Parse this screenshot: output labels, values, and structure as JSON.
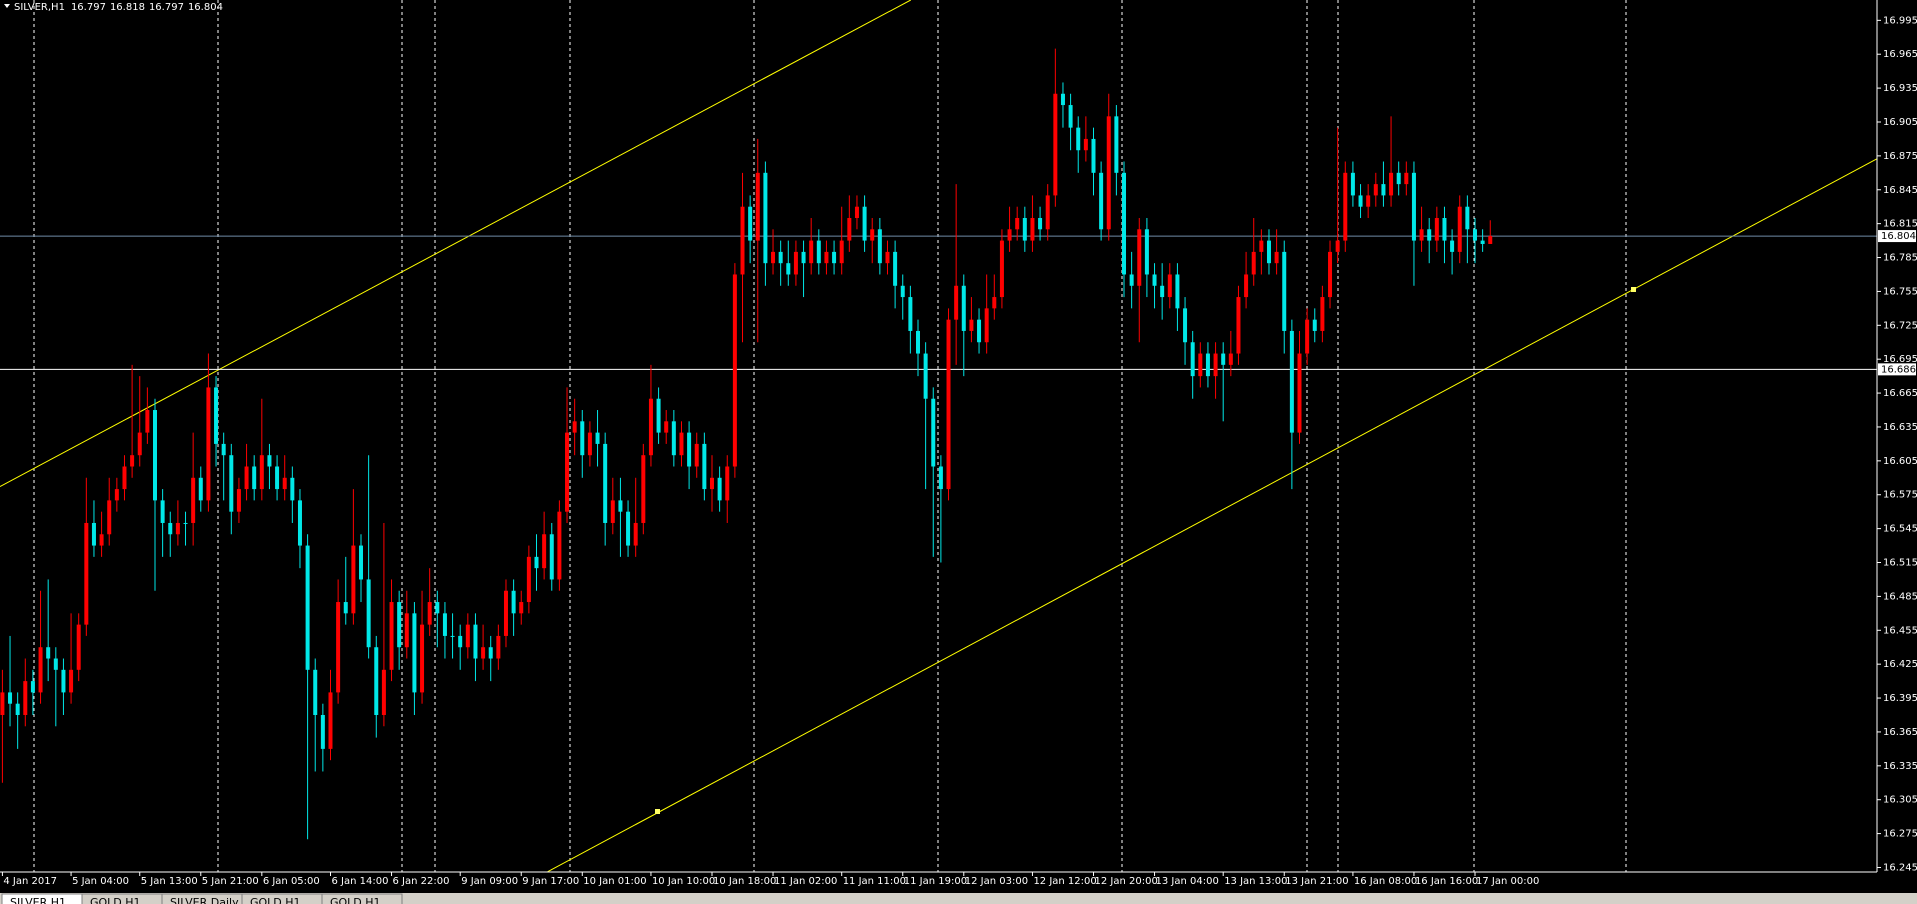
{
  "chart_data": {
    "type": "candlestick",
    "title": "SILVER,H1",
    "categories": [
      "4 Jan 2017",
      null,
      null,
      null,
      null,
      null,
      null,
      null,
      null,
      "5 Jan 04:00",
      null,
      null,
      null,
      null,
      null,
      null,
      null,
      null,
      "5 Jan 13:00",
      null,
      null,
      null,
      null,
      null,
      null,
      null,
      "5 Jan 21:00",
      null,
      null,
      null,
      null,
      null,
      null,
      null,
      "6 Jan 05:00",
      null,
      null,
      null,
      null,
      null,
      null,
      null,
      null,
      "6 Jan 14:00",
      null,
      null,
      null,
      null,
      null,
      null,
      null,
      "6 Jan 22:00",
      null,
      null,
      null,
      null,
      null,
      null,
      null,
      null,
      "9 Jan 09:00",
      null,
      null,
      null,
      null,
      null,
      null,
      null,
      "9 Jan 17:00",
      null,
      null,
      null,
      null,
      null,
      null,
      null,
      "10 Jan 01:00",
      null,
      null,
      null,
      null,
      null,
      null,
      null,
      null,
      "10 Jan 10:00",
      null,
      null,
      null,
      null,
      null,
      null,
      null,
      "10 Jan 18:00",
      null,
      null,
      null,
      null,
      null,
      null,
      null,
      "11 Jan 02:00",
      null,
      null,
      null,
      null,
      null,
      null,
      null,
      null,
      "11 Jan 11:00",
      null,
      null,
      null,
      null,
      null,
      null,
      null,
      "11 Jan 19:00",
      null,
      null,
      null,
      null,
      null,
      null,
      null,
      "12 Jan 03:00",
      null,
      null,
      null,
      null,
      null,
      null,
      null,
      null,
      "12 Jan 12:00",
      null,
      null,
      null,
      null,
      null,
      null,
      null,
      "12 Jan 20:00",
      null,
      null,
      null,
      null,
      null,
      null,
      null,
      "13 Jan 04:00",
      null,
      null,
      null,
      null,
      null,
      null,
      null,
      null,
      "13 Jan 13:00",
      null,
      null,
      null,
      null,
      null,
      null,
      null,
      "13 Jan 21:00",
      null,
      null,
      null,
      null,
      null,
      null,
      null,
      null,
      "16 Jan 08:00",
      null,
      null,
      null,
      null,
      null,
      null,
      null,
      "16 Jan 16:00",
      null,
      null,
      null,
      null,
      null,
      null,
      null,
      "17 Jan 00:00",
      null,
      null
    ],
    "open": [
      16.38,
      16.4,
      16.39,
      16.38,
      16.41,
      16.4,
      16.44,
      16.43,
      16.42,
      16.4,
      16.42,
      16.46,
      16.55,
      16.53,
      16.54,
      16.57,
      16.58,
      16.6,
      16.61,
      16.63,
      16.65,
      16.57,
      16.55,
      16.54,
      16.55,
      16.55,
      16.59,
      16.57,
      16.67,
      16.62,
      16.61,
      16.56,
      16.58,
      16.6,
      16.58,
      16.61,
      16.6,
      16.58,
      16.59,
      16.57,
      16.53,
      16.42,
      16.38,
      16.35,
      16.4,
      16.48,
      16.47,
      16.53,
      16.5,
      16.44,
      16.38,
      16.42,
      16.48,
      16.44,
      16.47,
      16.4,
      16.46,
      16.48,
      16.47,
      16.45,
      16.45,
      16.44,
      16.46,
      16.43,
      16.44,
      16.43,
      16.45,
      16.49,
      16.47,
      16.48,
      16.52,
      16.51,
      16.54,
      16.5,
      16.56,
      16.63,
      16.64,
      16.61,
      16.63,
      16.62,
      16.55,
      16.57,
      16.56,
      16.53,
      16.55,
      16.61,
      16.66,
      16.63,
      16.64,
      16.61,
      16.63,
      16.6,
      16.62,
      16.58,
      16.59,
      16.57,
      16.6,
      16.77,
      16.83,
      16.8,
      16.86,
      16.78,
      16.79,
      16.78,
      16.77,
      16.79,
      16.78,
      16.8,
      16.78,
      16.79,
      16.78,
      16.8,
      16.82,
      16.83,
      16.8,
      16.81,
      16.78,
      16.79,
      16.76,
      16.75,
      16.72,
      16.7,
      16.66,
      16.6,
      16.58,
      16.73,
      16.76,
      16.72,
      16.73,
      16.71,
      16.74,
      16.75,
      16.8,
      16.81,
      16.82,
      16.8,
      16.82,
      16.81,
      16.84,
      16.93,
      16.92,
      16.9,
      16.88,
      16.89,
      16.86,
      16.81,
      16.91,
      16.86,
      16.77,
      16.76,
      16.81,
      16.77,
      16.76,
      16.75,
      16.77,
      16.74,
      16.71,
      16.68,
      16.7,
      16.68,
      16.7,
      16.69,
      16.7,
      16.75,
      16.77,
      16.79,
      16.8,
      16.78,
      16.79,
      16.72,
      16.63,
      16.7,
      16.73,
      16.72,
      16.75,
      16.79,
      16.8,
      16.86,
      16.84,
      16.83,
      16.84,
      16.85,
      16.84,
      16.86,
      16.85,
      16.86,
      16.8,
      16.81,
      16.8,
      16.82,
      16.8,
      16.79,
      16.83,
      16.81,
      16.8,
      16.797
    ],
    "high": [
      16.42,
      16.45,
      16.4,
      16.43,
      16.42,
      16.49,
      16.5,
      16.44,
      16.43,
      16.47,
      16.47,
      16.59,
      16.57,
      16.56,
      16.59,
      16.59,
      16.61,
      16.69,
      16.68,
      16.67,
      16.66,
      16.58,
      16.56,
      16.57,
      16.56,
      16.63,
      16.6,
      16.7,
      16.68,
      16.63,
      16.62,
      16.59,
      16.62,
      16.61,
      16.66,
      16.62,
      16.61,
      16.61,
      16.6,
      16.58,
      16.54,
      16.43,
      16.39,
      16.42,
      16.5,
      16.52,
      16.58,
      16.54,
      16.61,
      16.45,
      16.55,
      16.5,
      16.49,
      16.49,
      16.48,
      16.49,
      16.51,
      16.49,
      16.48,
      16.47,
      16.46,
      16.47,
      16.47,
      16.46,
      16.45,
      16.46,
      16.5,
      16.5,
      16.49,
      16.53,
      16.54,
      16.56,
      16.55,
      16.57,
      16.67,
      16.66,
      16.65,
      16.64,
      16.65,
      16.63,
      16.59,
      16.59,
      16.57,
      16.59,
      16.62,
      16.69,
      16.67,
      16.65,
      16.65,
      16.64,
      16.64,
      16.63,
      16.63,
      16.61,
      16.6,
      16.61,
      16.78,
      16.86,
      16.84,
      16.89,
      16.87,
      16.81,
      16.8,
      16.8,
      16.8,
      16.8,
      16.82,
      16.81,
      16.8,
      16.8,
      16.83,
      16.84,
      16.84,
      16.84,
      16.82,
      16.82,
      16.8,
      16.8,
      16.77,
      16.76,
      16.73,
      16.71,
      16.67,
      16.61,
      16.74,
      16.85,
      16.77,
      16.75,
      16.74,
      16.77,
      16.77,
      16.81,
      16.83,
      16.83,
      16.83,
      16.84,
      16.83,
      16.85,
      16.97,
      16.94,
      16.93,
      16.91,
      16.91,
      16.9,
      16.87,
      16.93,
      16.92,
      16.87,
      16.79,
      16.82,
      16.82,
      16.78,
      16.78,
      16.78,
      16.78,
      16.75,
      16.72,
      16.71,
      16.71,
      16.71,
      16.71,
      16.72,
      16.76,
      16.79,
      16.82,
      16.81,
      16.81,
      16.81,
      16.8,
      16.73,
      16.72,
      16.74,
      16.74,
      16.76,
      16.8,
      16.9,
      16.87,
      16.87,
      16.85,
      16.85,
      16.86,
      16.87,
      16.91,
      16.87,
      16.87,
      16.87,
      16.83,
      16.82,
      16.83,
      16.83,
      16.81,
      16.84,
      16.84,
      16.82,
      16.81,
      16.818
    ],
    "low": [
      16.32,
      16.37,
      16.35,
      16.37,
      16.38,
      16.39,
      16.41,
      16.37,
      16.38,
      16.39,
      16.41,
      16.45,
      16.52,
      16.52,
      16.53,
      16.56,
      16.57,
      16.59,
      16.6,
      16.62,
      16.49,
      16.52,
      16.52,
      16.53,
      16.53,
      16.53,
      16.56,
      16.56,
      16.6,
      16.57,
      16.54,
      16.55,
      16.57,
      16.57,
      16.57,
      16.58,
      16.57,
      16.57,
      16.55,
      16.51,
      16.27,
      16.33,
      16.33,
      16.34,
      16.39,
      16.46,
      16.46,
      16.48,
      16.43,
      16.36,
      16.37,
      16.41,
      16.42,
      16.43,
      16.38,
      16.39,
      16.45,
      16.44,
      16.43,
      16.43,
      16.42,
      16.43,
      16.41,
      16.42,
      16.41,
      16.42,
      16.44,
      16.45,
      16.46,
      16.47,
      16.49,
      16.5,
      16.49,
      16.49,
      16.55,
      16.61,
      16.59,
      16.6,
      16.6,
      16.53,
      16.54,
      16.52,
      16.52,
      16.52,
      16.54,
      16.6,
      16.62,
      16.62,
      16.6,
      16.6,
      16.58,
      16.59,
      16.57,
      16.56,
      16.56,
      16.55,
      16.59,
      16.71,
      16.78,
      16.71,
      16.76,
      16.77,
      16.76,
      16.76,
      16.76,
      16.75,
      16.77,
      16.77,
      16.77,
      16.77,
      16.77,
      16.79,
      16.81,
      16.79,
      16.78,
      16.77,
      16.77,
      16.74,
      16.73,
      16.7,
      16.68,
      16.58,
      16.52,
      16.515,
      16.57,
      16.69,
      16.68,
      16.71,
      16.7,
      16.7,
      16.73,
      16.74,
      16.79,
      16.8,
      16.79,
      16.79,
      16.8,
      16.8,
      16.83,
      16.9,
      16.88,
      16.86,
      16.87,
      16.84,
      16.8,
      16.8,
      16.84,
      16.75,
      16.74,
      16.71,
      16.75,
      16.74,
      16.73,
      16.74,
      16.72,
      16.69,
      16.66,
      16.67,
      16.67,
      16.66,
      16.64,
      16.68,
      16.69,
      16.74,
      16.76,
      16.77,
      16.77,
      16.77,
      16.7,
      16.58,
      16.62,
      16.69,
      16.71,
      16.71,
      16.74,
      16.78,
      16.79,
      16.83,
      16.82,
      16.82,
      16.83,
      16.83,
      16.83,
      16.84,
      16.84,
      16.76,
      16.79,
      16.78,
      16.79,
      16.78,
      16.77,
      16.78,
      16.78,
      16.78,
      16.79,
      16.797
    ],
    "close": [
      16.4,
      16.39,
      16.38,
      16.41,
      16.4,
      16.44,
      16.43,
      16.42,
      16.4,
      16.42,
      16.46,
      16.55,
      16.53,
      16.54,
      16.57,
      16.58,
      16.6,
      16.61,
      16.63,
      16.65,
      16.57,
      16.55,
      16.54,
      16.55,
      16.55,
      16.59,
      16.57,
      16.67,
      16.62,
      16.61,
      16.56,
      16.58,
      16.6,
      16.58,
      16.61,
      16.6,
      16.58,
      16.59,
      16.57,
      16.53,
      16.42,
      16.38,
      16.35,
      16.4,
      16.48,
      16.47,
      16.53,
      16.5,
      16.44,
      16.38,
      16.42,
      16.48,
      16.44,
      16.47,
      16.4,
      16.46,
      16.48,
      16.47,
      16.45,
      16.45,
      16.44,
      16.46,
      16.43,
      16.44,
      16.43,
      16.45,
      16.49,
      16.47,
      16.48,
      16.52,
      16.51,
      16.54,
      16.5,
      16.56,
      16.63,
      16.64,
      16.61,
      16.63,
      16.62,
      16.55,
      16.57,
      16.56,
      16.53,
      16.55,
      16.61,
      16.66,
      16.63,
      16.64,
      16.61,
      16.63,
      16.6,
      16.62,
      16.58,
      16.59,
      16.57,
      16.6,
      16.77,
      16.83,
      16.8,
      16.86,
      16.78,
      16.79,
      16.78,
      16.77,
      16.79,
      16.78,
      16.8,
      16.78,
      16.79,
      16.78,
      16.8,
      16.82,
      16.83,
      16.8,
      16.81,
      16.78,
      16.79,
      16.76,
      16.75,
      16.72,
      16.7,
      16.66,
      16.6,
      16.58,
      16.73,
      16.76,
      16.72,
      16.73,
      16.71,
      16.74,
      16.75,
      16.8,
      16.81,
      16.82,
      16.8,
      16.82,
      16.81,
      16.84,
      16.93,
      16.92,
      16.9,
      16.88,
      16.89,
      16.86,
      16.81,
      16.91,
      16.86,
      16.77,
      16.76,
      16.81,
      16.77,
      16.76,
      16.75,
      16.77,
      16.74,
      16.71,
      16.68,
      16.7,
      16.68,
      16.7,
      16.69,
      16.7,
      16.75,
      16.77,
      16.79,
      16.8,
      16.78,
      16.79,
      16.72,
      16.63,
      16.7,
      16.73,
      16.72,
      16.75,
      16.79,
      16.8,
      16.86,
      16.84,
      16.83,
      16.84,
      16.85,
      16.84,
      16.86,
      16.85,
      16.86,
      16.8,
      16.81,
      16.8,
      16.82,
      16.8,
      16.79,
      16.83,
      16.81,
      16.8,
      16.797,
      16.804
    ],
    "up_color": "#ff0000",
    "down_color": "#00e8e8",
    "ylim": [
      16.241,
      17.013
    ],
    "yticks": [
      16.245,
      16.275,
      16.305,
      16.335,
      16.365,
      16.395,
      16.425,
      16.455,
      16.485,
      16.515,
      16.545,
      16.575,
      16.605,
      16.635,
      16.665,
      16.695,
      16.725,
      16.755,
      16.785,
      16.815,
      16.845,
      16.875,
      16.905,
      16.935,
      16.965,
      16.995
    ],
    "level": 16.686,
    "level_color": "#ffffff",
    "bid_color": "#6f8ca8",
    "grid": false
  },
  "tabs": [
    "SILVER,H1",
    "GOLD,H1",
    "SILVER,Daily",
    "GOLD,H1",
    "GOLD,H1"
  ]
}
